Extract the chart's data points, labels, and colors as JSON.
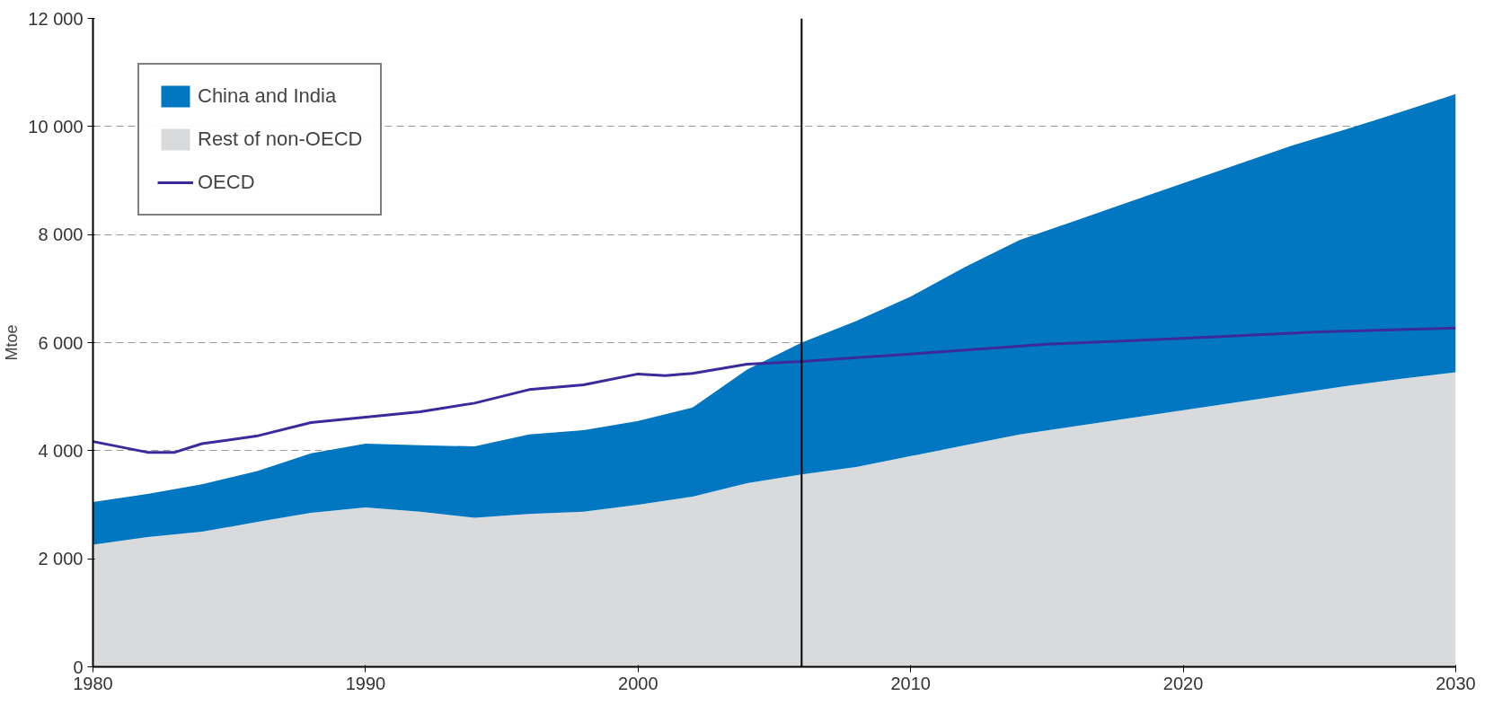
{
  "chart_data": {
    "type": "area",
    "stacked": true,
    "ylabel": "Mtoe",
    "x": [
      1980,
      1982,
      1984,
      1986,
      1988,
      1990,
      1992,
      1994,
      1996,
      1998,
      2000,
      2002,
      2004,
      2006,
      2008,
      2010,
      2012,
      2014,
      2016,
      2018,
      2020,
      2022,
      2024,
      2026,
      2028,
      2030
    ],
    "series": [
      {
        "name": "Rest of non-OECD",
        "color": "#d9dadc",
        "values": [
          2260,
          2400,
          2500,
          2680,
          2850,
          2950,
          2870,
          2760,
          2830,
          2870,
          3000,
          3150,
          3400,
          3560,
          3700,
          3900,
          4100,
          4300,
          4450,
          4600,
          4750,
          4900,
          5050,
          5200,
          5330,
          5450
        ]
      },
      {
        "name": "China and India",
        "color": "#0077c0",
        "values": [
          790,
          800,
          880,
          940,
          1100,
          1180,
          1230,
          1320,
          1470,
          1510,
          1550,
          1650,
          2100,
          2440,
          2700,
          2950,
          3300,
          3600,
          3800,
          4000,
          4200,
          4400,
          4600,
          4750,
          4940,
          5150
        ]
      },
      {
        "name": "OECD",
        "type": "line",
        "color": "#3a2a9c",
        "x": [
          1980,
          1982,
          1983,
          1984,
          1986,
          1988,
          1990,
          1992,
          1994,
          1996,
          1998,
          2000,
          2001,
          2002,
          2004,
          2006,
          2008,
          2010,
          2015,
          2020,
          2025,
          2030
        ],
        "values": [
          4170,
          3970,
          3970,
          4130,
          4270,
          4520,
          4620,
          4720,
          4880,
          5130,
          5220,
          5420,
          5390,
          5430,
          5600,
          5650,
          5720,
          5790,
          5970,
          6080,
          6200,
          6270
        ]
      }
    ],
    "xlim": [
      1980,
      2030
    ],
    "xticks": [
      1980,
      1990,
      2000,
      2010,
      2020,
      2030
    ],
    "ylim": [
      0,
      12000
    ],
    "yticks": [
      {
        "value": 0,
        "label": "0"
      },
      {
        "value": 2000,
        "label": "2 000"
      },
      {
        "value": 4000,
        "label": "4 000"
      },
      {
        "value": 6000,
        "label": "6 000"
      },
      {
        "value": 8000,
        "label": "8 000"
      },
      {
        "value": 10000,
        "label": "10 000"
      },
      {
        "value": 12000,
        "label": "12 000"
      }
    ],
    "grid": "y",
    "legend": "top left",
    "line_style": "solid",
    "ref_lines": [
      {
        "axis": "x",
        "value": 2006,
        "label": null,
        "color": "#000000"
      }
    ]
  }
}
